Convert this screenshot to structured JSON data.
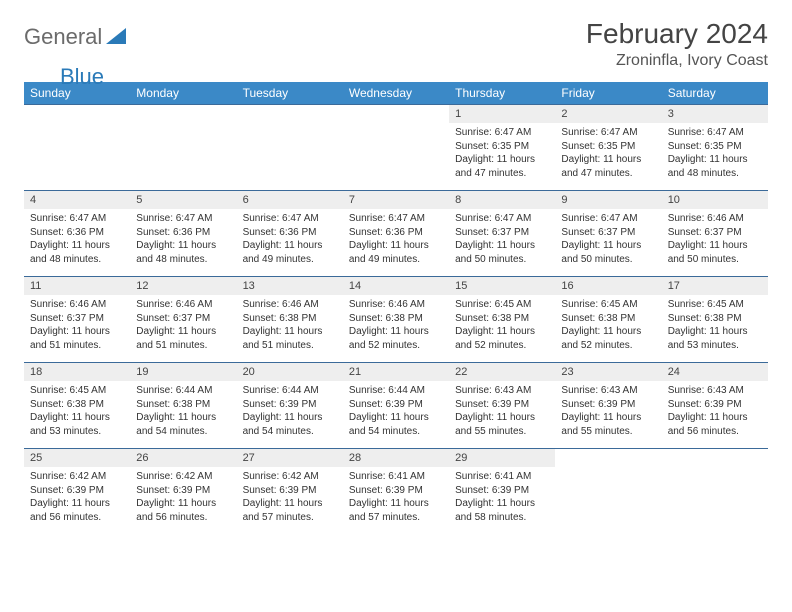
{
  "logo": {
    "text_general": "General",
    "text_blue": "Blue"
  },
  "title": "February 2024",
  "location": "Zroninfla, Ivory Coast",
  "colors": {
    "header_bg": "#3b89c7",
    "header_fg": "#ffffff",
    "row_border": "#3b6a99",
    "daynum_bg": "#eeeeee",
    "text": "#333333",
    "logo_gray": "#6b6b6b",
    "logo_blue": "#2a7ab8"
  },
  "typography": {
    "title_fontsize": 28,
    "location_fontsize": 16,
    "dayhdr_fontsize": 12,
    "daynum_fontsize": 11,
    "info_fontsize": 10
  },
  "day_headers": [
    "Sunday",
    "Monday",
    "Tuesday",
    "Wednesday",
    "Thursday",
    "Friday",
    "Saturday"
  ],
  "weeks": [
    [
      {
        "empty": true
      },
      {
        "empty": true
      },
      {
        "empty": true
      },
      {
        "empty": true
      },
      {
        "n": "1",
        "sunrise": "6:47 AM",
        "sunset": "6:35 PM",
        "daylight": "11 hours and 47 minutes."
      },
      {
        "n": "2",
        "sunrise": "6:47 AM",
        "sunset": "6:35 PM",
        "daylight": "11 hours and 47 minutes."
      },
      {
        "n": "3",
        "sunrise": "6:47 AM",
        "sunset": "6:35 PM",
        "daylight": "11 hours and 48 minutes."
      }
    ],
    [
      {
        "n": "4",
        "sunrise": "6:47 AM",
        "sunset": "6:36 PM",
        "daylight": "11 hours and 48 minutes."
      },
      {
        "n": "5",
        "sunrise": "6:47 AM",
        "sunset": "6:36 PM",
        "daylight": "11 hours and 48 minutes."
      },
      {
        "n": "6",
        "sunrise": "6:47 AM",
        "sunset": "6:36 PM",
        "daylight": "11 hours and 49 minutes."
      },
      {
        "n": "7",
        "sunrise": "6:47 AM",
        "sunset": "6:36 PM",
        "daylight": "11 hours and 49 minutes."
      },
      {
        "n": "8",
        "sunrise": "6:47 AM",
        "sunset": "6:37 PM",
        "daylight": "11 hours and 50 minutes."
      },
      {
        "n": "9",
        "sunrise": "6:47 AM",
        "sunset": "6:37 PM",
        "daylight": "11 hours and 50 minutes."
      },
      {
        "n": "10",
        "sunrise": "6:46 AM",
        "sunset": "6:37 PM",
        "daylight": "11 hours and 50 minutes."
      }
    ],
    [
      {
        "n": "11",
        "sunrise": "6:46 AM",
        "sunset": "6:37 PM",
        "daylight": "11 hours and 51 minutes."
      },
      {
        "n": "12",
        "sunrise": "6:46 AM",
        "sunset": "6:37 PM",
        "daylight": "11 hours and 51 minutes."
      },
      {
        "n": "13",
        "sunrise": "6:46 AM",
        "sunset": "6:38 PM",
        "daylight": "11 hours and 51 minutes."
      },
      {
        "n": "14",
        "sunrise": "6:46 AM",
        "sunset": "6:38 PM",
        "daylight": "11 hours and 52 minutes."
      },
      {
        "n": "15",
        "sunrise": "6:45 AM",
        "sunset": "6:38 PM",
        "daylight": "11 hours and 52 minutes."
      },
      {
        "n": "16",
        "sunrise": "6:45 AM",
        "sunset": "6:38 PM",
        "daylight": "11 hours and 52 minutes."
      },
      {
        "n": "17",
        "sunrise": "6:45 AM",
        "sunset": "6:38 PM",
        "daylight": "11 hours and 53 minutes."
      }
    ],
    [
      {
        "n": "18",
        "sunrise": "6:45 AM",
        "sunset": "6:38 PM",
        "daylight": "11 hours and 53 minutes."
      },
      {
        "n": "19",
        "sunrise": "6:44 AM",
        "sunset": "6:38 PM",
        "daylight": "11 hours and 54 minutes."
      },
      {
        "n": "20",
        "sunrise": "6:44 AM",
        "sunset": "6:39 PM",
        "daylight": "11 hours and 54 minutes."
      },
      {
        "n": "21",
        "sunrise": "6:44 AM",
        "sunset": "6:39 PM",
        "daylight": "11 hours and 54 minutes."
      },
      {
        "n": "22",
        "sunrise": "6:43 AM",
        "sunset": "6:39 PM",
        "daylight": "11 hours and 55 minutes."
      },
      {
        "n": "23",
        "sunrise": "6:43 AM",
        "sunset": "6:39 PM",
        "daylight": "11 hours and 55 minutes."
      },
      {
        "n": "24",
        "sunrise": "6:43 AM",
        "sunset": "6:39 PM",
        "daylight": "11 hours and 56 minutes."
      }
    ],
    [
      {
        "n": "25",
        "sunrise": "6:42 AM",
        "sunset": "6:39 PM",
        "daylight": "11 hours and 56 minutes."
      },
      {
        "n": "26",
        "sunrise": "6:42 AM",
        "sunset": "6:39 PM",
        "daylight": "11 hours and 56 minutes."
      },
      {
        "n": "27",
        "sunrise": "6:42 AM",
        "sunset": "6:39 PM",
        "daylight": "11 hours and 57 minutes."
      },
      {
        "n": "28",
        "sunrise": "6:41 AM",
        "sunset": "6:39 PM",
        "daylight": "11 hours and 57 minutes."
      },
      {
        "n": "29",
        "sunrise": "6:41 AM",
        "sunset": "6:39 PM",
        "daylight": "11 hours and 58 minutes."
      },
      {
        "empty": true
      },
      {
        "empty": true
      }
    ]
  ],
  "labels": {
    "sunrise_prefix": "Sunrise: ",
    "sunset_prefix": "Sunset: ",
    "daylight_prefix": "Daylight: "
  }
}
